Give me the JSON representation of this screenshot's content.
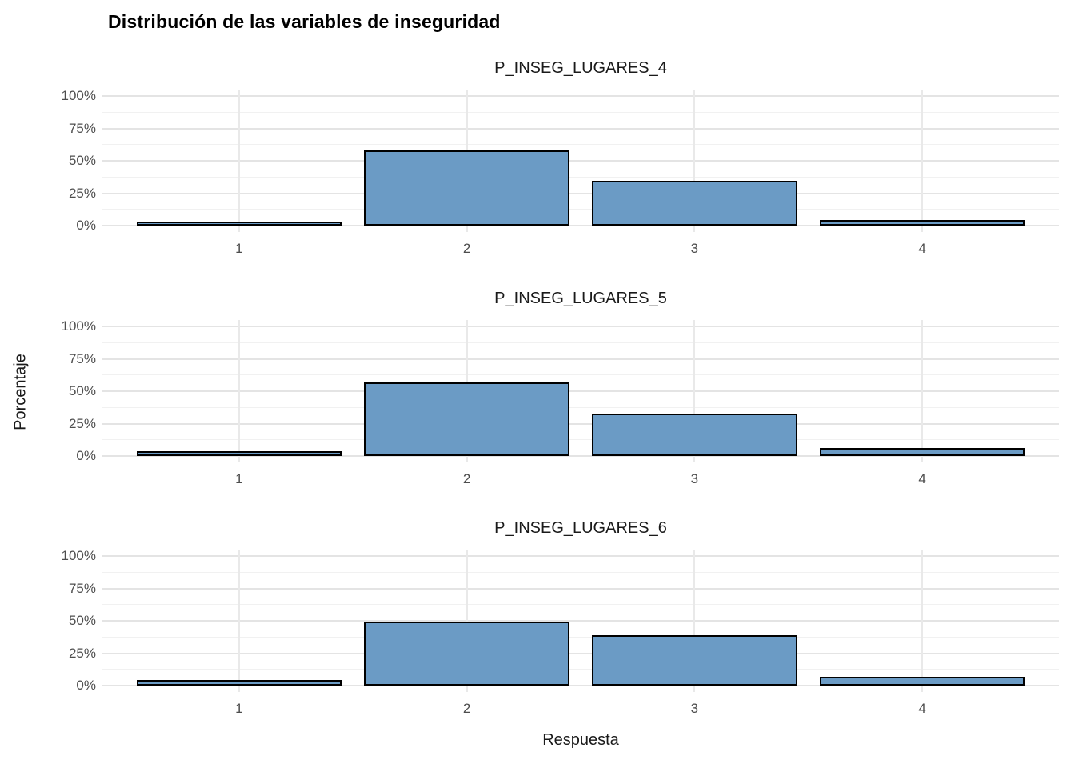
{
  "title": "Distribución de las variables de inseguridad",
  "colors": {
    "bar_fill": "#6b9bc5",
    "bar_border": "#000000",
    "grid_major": "#e4e4e4",
    "grid_minor": "#f1f1f1",
    "tick_label": "#4d4d4d",
    "text": "#1a1a1a",
    "background": "#ffffff"
  },
  "chart_data": {
    "type": "bar",
    "title": "Distribución de las variables de inseguridad",
    "xlabel": "Respuesta",
    "ylabel": "Porcentaje",
    "categories": [
      "1",
      "2",
      "3",
      "4"
    ],
    "y_ticks": [
      "0%",
      "25%",
      "50%",
      "75%",
      "100%"
    ],
    "y_minor_ticks": [
      12.5,
      37.5,
      62.5,
      87.5
    ],
    "ylim": [
      0,
      100
    ],
    "grid": true,
    "legend": "none",
    "layout": "3 stacked facets, shared x axis title at bottom, y axis title rotated at left",
    "facets": [
      {
        "title": "P_INSEG_LUGARES_4",
        "values": [
          3,
          58,
          34.5,
          4.5
        ]
      },
      {
        "title": "P_INSEG_LUGARES_5",
        "values": [
          4,
          57,
          33,
          6
        ]
      },
      {
        "title": "P_INSEG_LUGARES_6",
        "values": [
          4.5,
          49.5,
          39,
          7
        ]
      }
    ]
  }
}
